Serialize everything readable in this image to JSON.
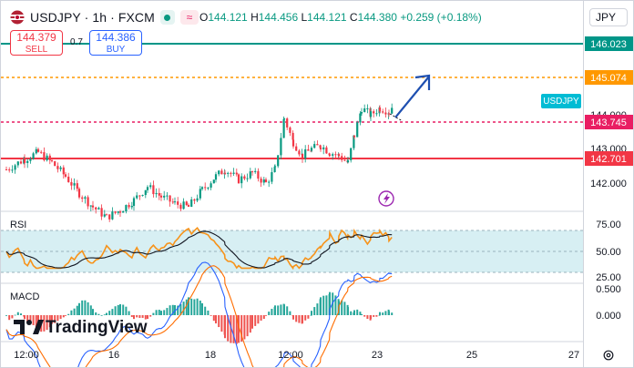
{
  "header": {
    "title": "USDJPY · 1h · FXCM",
    "ohlc": {
      "o_label": "O",
      "o": "144.121",
      "h_label": "H",
      "h": "144.456",
      "l_label": "L",
      "l": "144.121",
      "c_label": "C",
      "c": "144.380",
      "change": "+0.259 (+0.18%)"
    }
  },
  "trade": {
    "sell_price": "144.379",
    "sell_label": "SELL",
    "spread": "0.7",
    "buy_price": "144.386",
    "buy_label": "BUY"
  },
  "currency_selector": "JPY",
  "price_axis": {
    "ticks": [
      "144.000",
      "143.000",
      "142.000"
    ],
    "levels": [
      {
        "label": "146.023",
        "color": "#009688"
      },
      {
        "label": "145.074",
        "color": "#ff9800"
      },
      {
        "label": "143.745",
        "color": "#e91e63"
      },
      {
        "label": "142.701",
        "color": "#f23645"
      }
    ],
    "symbol_tag": "USDJPY",
    "symbol_tag_color": "#00bcd4"
  },
  "rsi": {
    "label": "RSI",
    "ticks": [
      "75.00",
      "50.00",
      "25.00"
    ]
  },
  "macd": {
    "label": "MACD",
    "ticks": [
      "0.500",
      "0.000"
    ]
  },
  "time_axis": {
    "labels": [
      "12:00",
      "16",
      "18",
      "12:00",
      "23",
      "25",
      "27"
    ]
  },
  "branding": {
    "name": "TradingView"
  },
  "colors": {
    "up": "#089981",
    "down": "#f23645",
    "rsi_line": "#f7931a",
    "rsi_band": "#d7eff3",
    "arrow": "#1e4fb0",
    "flash": "#9c27b0"
  }
}
